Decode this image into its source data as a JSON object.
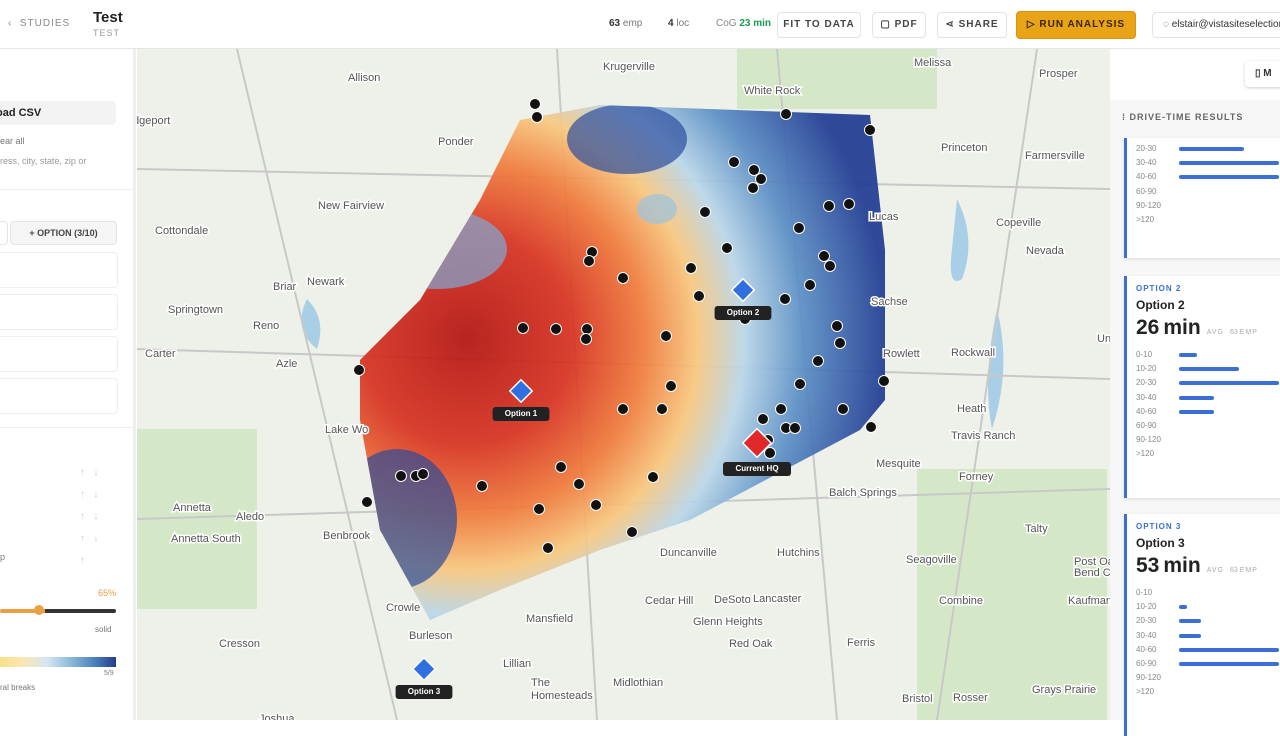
{
  "topbar": {
    "back": "STUDIES",
    "title": "Test",
    "subtitle": "TEST",
    "stats": [
      {
        "value": 63,
        "label": "emp"
      },
      {
        "value": 4,
        "label": "loc"
      }
    ],
    "cog": {
      "label": "CoG",
      "value": 23,
      "unit": "min"
    },
    "buttons": [
      "FIT TO DATA",
      "PDF",
      "SHARE"
    ],
    "run": "RUN ANALYSIS",
    "user": "elstair@vistasiteselection.c"
  },
  "left_panel": {
    "upload": "oad CSV",
    "clear": "ear all",
    "placeholder": "ress, city, state, zip or",
    "add_option": "+ OPTION (3/10)",
    "row_label": "p",
    "opacity": {
      "value": 65,
      "unit": "%"
    },
    "style": "solid",
    "breaks_count": "5/9",
    "breaks": "ral breaks"
  },
  "map": {
    "chip": "M",
    "towns": [
      "dgeport",
      "Allison",
      "Krugerville",
      "Melissa",
      "White Rock",
      "Prosper",
      "Ponder",
      "Princeton",
      "Farmersville",
      "New Fairview",
      "Lucas",
      "Copeville",
      "Cottondale",
      "Nevada",
      "Briar",
      "Newark",
      "Springtown",
      "Reno",
      "Sachse",
      "Carter",
      "Azle",
      "Rowlett",
      "Rockwall",
      "Lake Wo",
      "Heath",
      "Travis Ranch",
      "Mesquite",
      "Forney",
      "Annetta",
      "Aledo",
      "Balch Springs",
      "Annetta South",
      "Benbrook",
      "Talty",
      "Duncanville",
      "Hutchins",
      "Seagoville",
      "Crowle",
      "Cedar Hill",
      "DeSoto",
      "Lancaster",
      "Combine",
      "Kaufman",
      "Post Oak",
      "Bend City",
      "Mansfield",
      "Glenn Heights",
      "Cresson",
      "Burleson",
      "Red Oak",
      "Ferris",
      "Lillian",
      "The",
      "Homesteads",
      "Midlothian",
      "Bristol",
      "Rosser",
      "Grays Prairie",
      "Joshua",
      "Unic"
    ],
    "markers": [
      "Option 1",
      "Option 2",
      "Current HQ",
      "Option 3"
    ]
  },
  "results": {
    "title": "DRIVE-TIME RESULTS",
    "cards": [
      {
        "bins": [
          "20-30",
          "30-40",
          "40-60",
          "60-90",
          "90-120",
          ">120"
        ],
        "bars": [
          65,
          100,
          100,
          0,
          0,
          0
        ]
      },
      {
        "tag": "OPTION 2",
        "name": "Option 2",
        "minutes": 26,
        "unit": "min",
        "avg": "AVG",
        "emp": 63,
        "emp_label": "EMP",
        "bins": [
          "0-10",
          "10-20",
          "20-30",
          "30-40",
          "40-60",
          "60-90",
          "90-120",
          ">120"
        ],
        "bars": [
          18,
          60,
          100,
          35,
          35,
          0,
          0,
          0
        ]
      },
      {
        "tag": "OPTION 3",
        "name": "Option 3",
        "minutes": 53,
        "unit": "min",
        "avg": "AVG",
        "emp": 63,
        "emp_label": "EMP",
        "bins": [
          "0-10",
          "10-20",
          "20-30",
          "30-40",
          "40-60",
          "60-90",
          "90-120",
          ">120"
        ],
        "bars": [
          0,
          8,
          22,
          22,
          100,
          100,
          0,
          0
        ]
      }
    ]
  }
}
